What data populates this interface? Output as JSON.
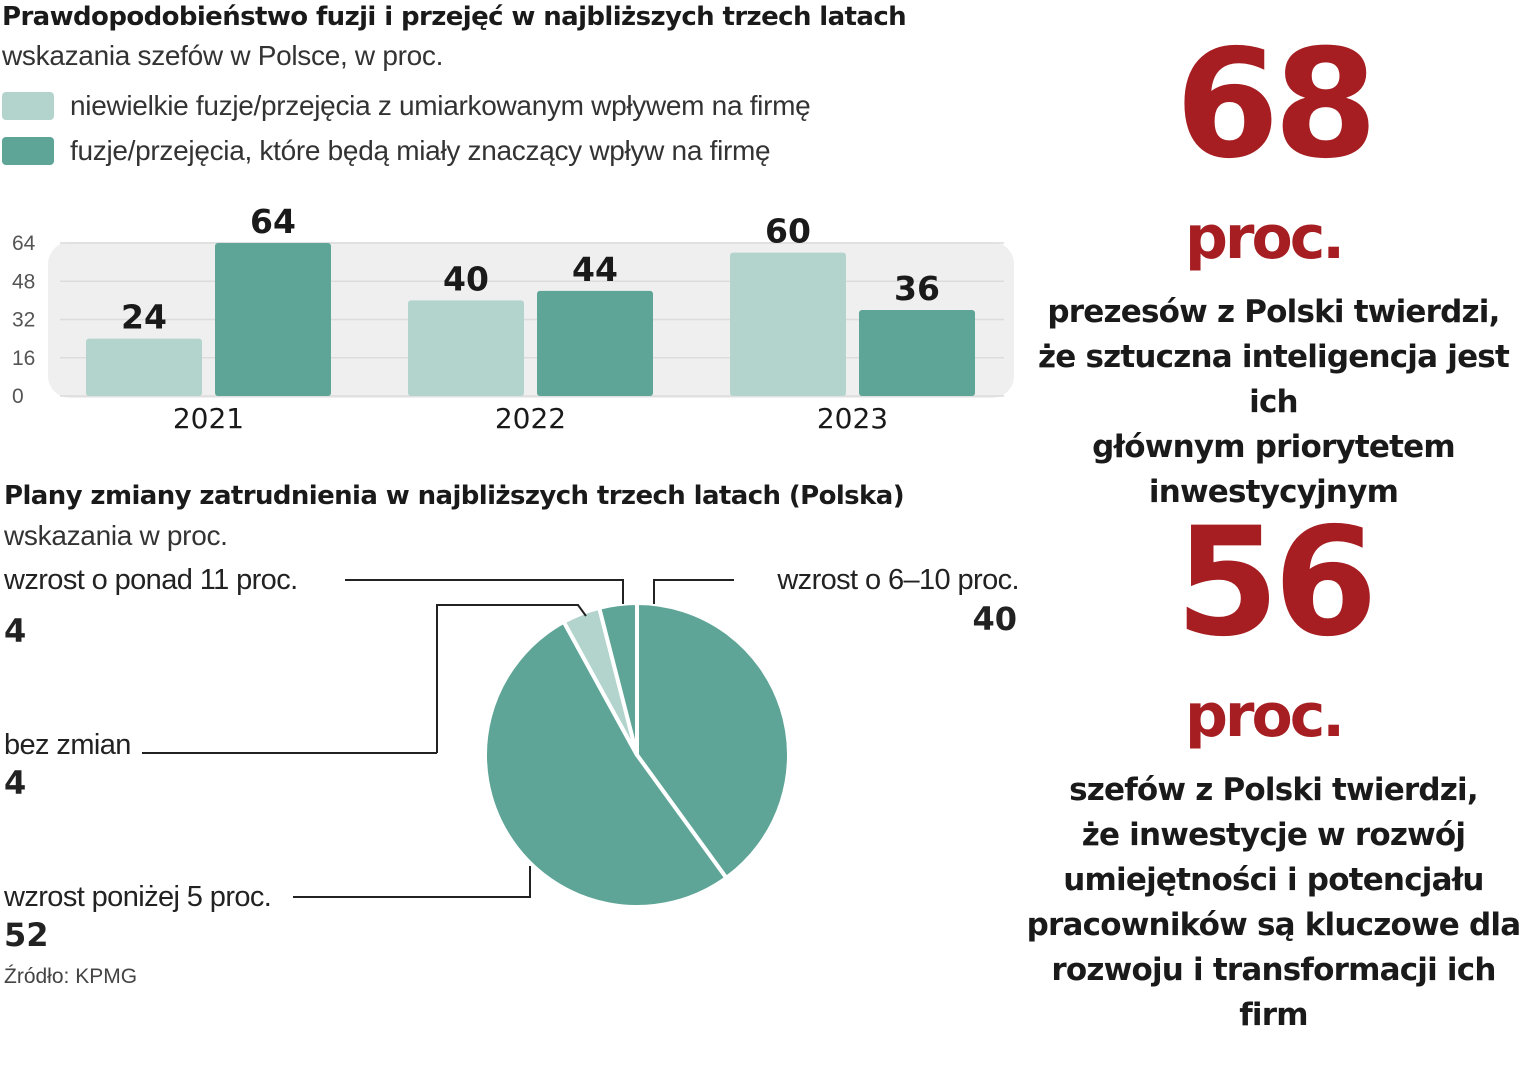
{
  "colors": {
    "light": "#b2d4cd",
    "dark": "#5ea597",
    "red": "#a61e22",
    "panel": "#efefef"
  },
  "bar_section": {
    "title": "Prawdopodobieństwo fuzji i przejęć w najbliższych trzech latach",
    "subtitle": "wskazania szefów w Polsce, w proc.",
    "legend": [
      {
        "label": "niewielkie fuzje/przejęcia z umiarkowanym wpływem na firmę"
      },
      {
        "label": "fuzje/przejęcia, które będą miały znaczący wpływ na firmę"
      }
    ]
  },
  "pie_section": {
    "title": "Plany zmiany zatrudnienia w najbliższych trzech latach (Polska)",
    "subtitle": "wskazania w proc."
  },
  "chart_data": [
    {
      "type": "bar",
      "title": "Prawdopodobieństwo fuzji i przejęć w najbliższych trzech latach",
      "categories": [
        "2021",
        "2022",
        "2023"
      ],
      "series": [
        {
          "name": "niewielkie fuzje/przejęcia z umiarkowanym wpływem na firmę",
          "values": [
            24,
            40,
            60
          ]
        },
        {
          "name": "fuzje/przejęcia, które będą miały znaczący wpływ na firmę",
          "values": [
            64,
            44,
            36
          ]
        }
      ],
      "ylim": [
        0,
        64
      ],
      "yticks": [
        "0",
        "16",
        "32",
        "48",
        "64"
      ],
      "grid": true,
      "legend_position": "top-left"
    },
    {
      "type": "pie",
      "title": "Plany zmiany zatrudnienia w najbliższych trzech latach (Polska)",
      "slices": [
        {
          "label": "wzrost o 6–10 proc.",
          "value": 40
        },
        {
          "label": "wzrost poniżej 5 proc.",
          "value": 52
        },
        {
          "label": "bez zmian",
          "value": 4
        },
        {
          "label": "wzrost o ponad 11 proc.",
          "value": 4
        }
      ]
    }
  ],
  "stats": [
    {
      "value": "68",
      "unit": "proc.",
      "lines": [
        "prezesów z Polski twierdzi,",
        "że sztuczna inteligencja jest ich",
        "głównym priorytetem",
        "inwestycyjnym"
      ]
    },
    {
      "value": "56",
      "unit": "proc.",
      "lines": [
        "szefów z Polski twierdzi,",
        "że inwestycje w rozwój",
        "umiejętności i potencjału",
        "pracowników są kluczowe dla",
        "rozwoju i transformacji ich firm"
      ]
    }
  ],
  "source": "Źródło: KPMG"
}
